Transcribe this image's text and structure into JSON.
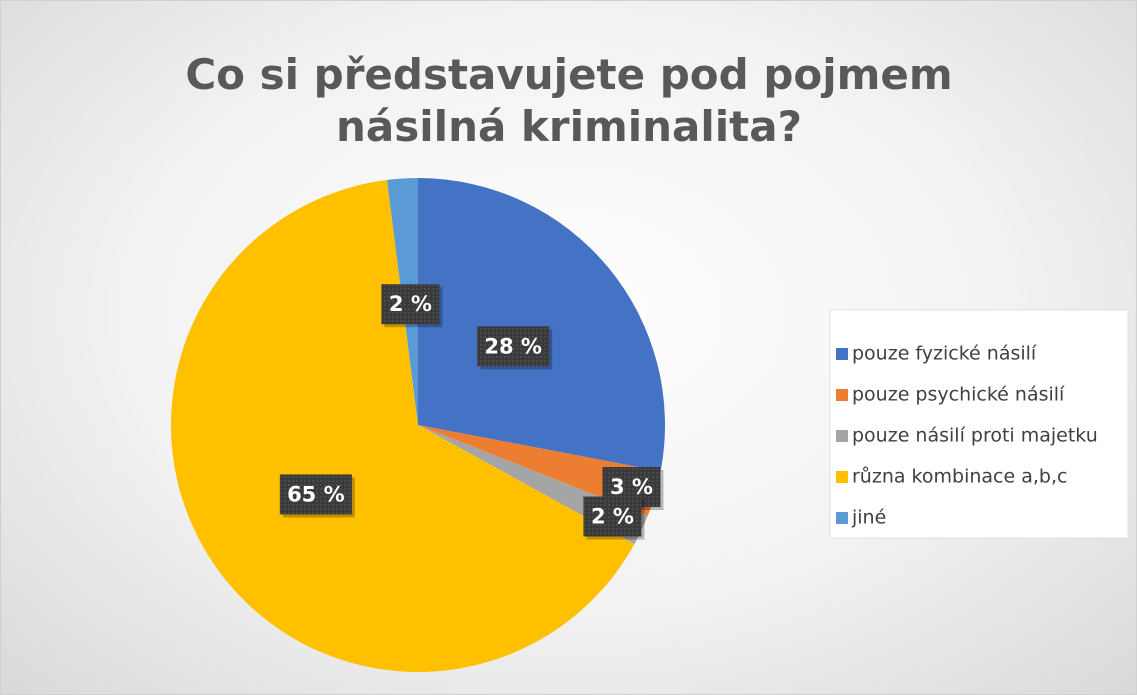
{
  "chart_data": {
    "type": "pie",
    "title": "Co si představujete pod pojmem násilná kriminalita?",
    "categories": [
      "pouze fyzické násilí",
      "pouze psychické násilí",
      "pouze násilí proti majetku",
      "různa kombinace a,b,c",
      "jiné"
    ],
    "values": [
      28,
      3,
      2,
      65,
      2
    ],
    "value_labels": [
      "28 %",
      "3 %",
      "2 %",
      "65 %",
      "2 %"
    ],
    "colors": [
      "#4472c4",
      "#ed7d31",
      "#a5a5a5",
      "#ffc000",
      "#5b9bd5"
    ],
    "legend": "right"
  }
}
